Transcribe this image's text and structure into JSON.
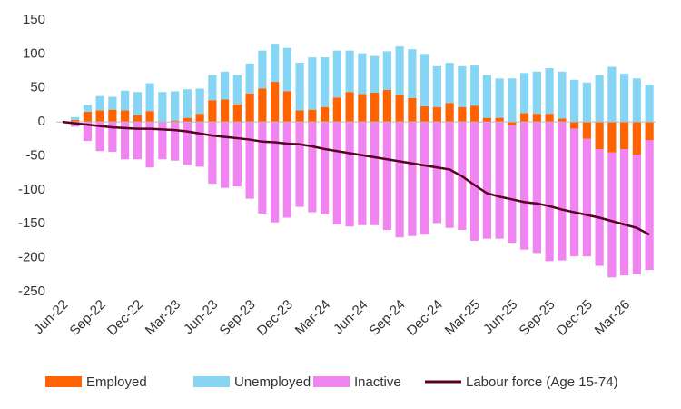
{
  "chart_data": {
    "type": "bar",
    "categories": [
      "Jun-22",
      null,
      null,
      "Sep-22",
      null,
      null,
      "Dec-22",
      null,
      null,
      "Mar-23",
      null,
      null,
      "Jun-23",
      null,
      null,
      "Sep-23",
      null,
      null,
      "Dec-23",
      null,
      null,
      "Mar-24",
      null,
      null,
      "Jun-24",
      null,
      null,
      "Sep-24",
      null,
      null,
      "Dec-24",
      null,
      null,
      "Mar-25",
      null,
      null,
      "Jun-25",
      null,
      null,
      "Sep-25",
      null,
      null,
      "Dec-25",
      null,
      null,
      "Mar-26",
      null,
      null
    ],
    "series": [
      {
        "name": "Employed",
        "type": "bar",
        "color": "#ff6200",
        "values": [
          0,
          3,
          15,
          17,
          18,
          17,
          10,
          16,
          0,
          2,
          6,
          12,
          32,
          33,
          26,
          42,
          49,
          59,
          45,
          17,
          18,
          22,
          36,
          44,
          41,
          43,
          47,
          40,
          35,
          23,
          22,
          28,
          22,
          24,
          6,
          6,
          -5,
          13,
          12,
          12,
          5,
          -10,
          -25,
          -40,
          -45,
          -40,
          -48,
          -27
        ]
      },
      {
        "name": "Unemployed",
        "type": "bar",
        "color": "#87d5f5",
        "values": [
          0,
          4,
          10,
          21,
          19,
          29,
          34,
          41,
          44,
          43,
          42,
          37,
          37,
          41,
          43,
          44,
          56,
          56,
          64,
          70,
          77,
          73,
          69,
          61,
          60,
          54,
          57,
          71,
          72,
          77,
          60,
          59,
          60,
          59,
          63,
          58,
          64,
          59,
          62,
          67,
          69,
          62,
          58,
          69,
          81,
          71,
          64,
          55
        ]
      },
      {
        "name": "Inactive",
        "type": "bar",
        "color": "#f084f0",
        "values": [
          0,
          -7,
          -28,
          -43,
          -44,
          -55,
          -55,
          -67,
          -55,
          -57,
          -63,
          -66,
          -91,
          -97,
          -95,
          -113,
          -135,
          -148,
          -141,
          -125,
          -133,
          -136,
          -151,
          -154,
          -152,
          -152,
          -159,
          -170,
          -168,
          -166,
          -149,
          -156,
          -159,
          -175,
          -172,
          -172,
          -173,
          -188,
          -193,
          -205,
          -204,
          -188,
          -173,
          -172,
          -184,
          -186,
          -176,
          -191
        ]
      },
      {
        "name": "Labour force (Age 15-74)",
        "type": "line",
        "color": "#5a0025",
        "values": [
          0,
          -2,
          -4,
          -6,
          -8,
          -9,
          -10,
          -10,
          -11,
          -12,
          -14,
          -17,
          -20,
          -22,
          -24,
          -26,
          -29,
          -30,
          -32,
          -33,
          -36,
          -40,
          -43,
          -46,
          -49,
          -52,
          -55,
          -58,
          -61,
          -64,
          -67,
          -70,
          -80,
          -93,
          -105,
          -110,
          -114,
          -118,
          -120,
          -124,
          -129,
          -133,
          -137,
          -141,
          -146,
          -151,
          -156,
          -166
        ]
      }
    ],
    "ylim": [
      -250,
      150
    ],
    "yticks": [
      -250,
      -200,
      -150,
      -100,
      -50,
      0,
      50,
      100,
      150
    ],
    "grid": false,
    "legend": "bottom"
  }
}
